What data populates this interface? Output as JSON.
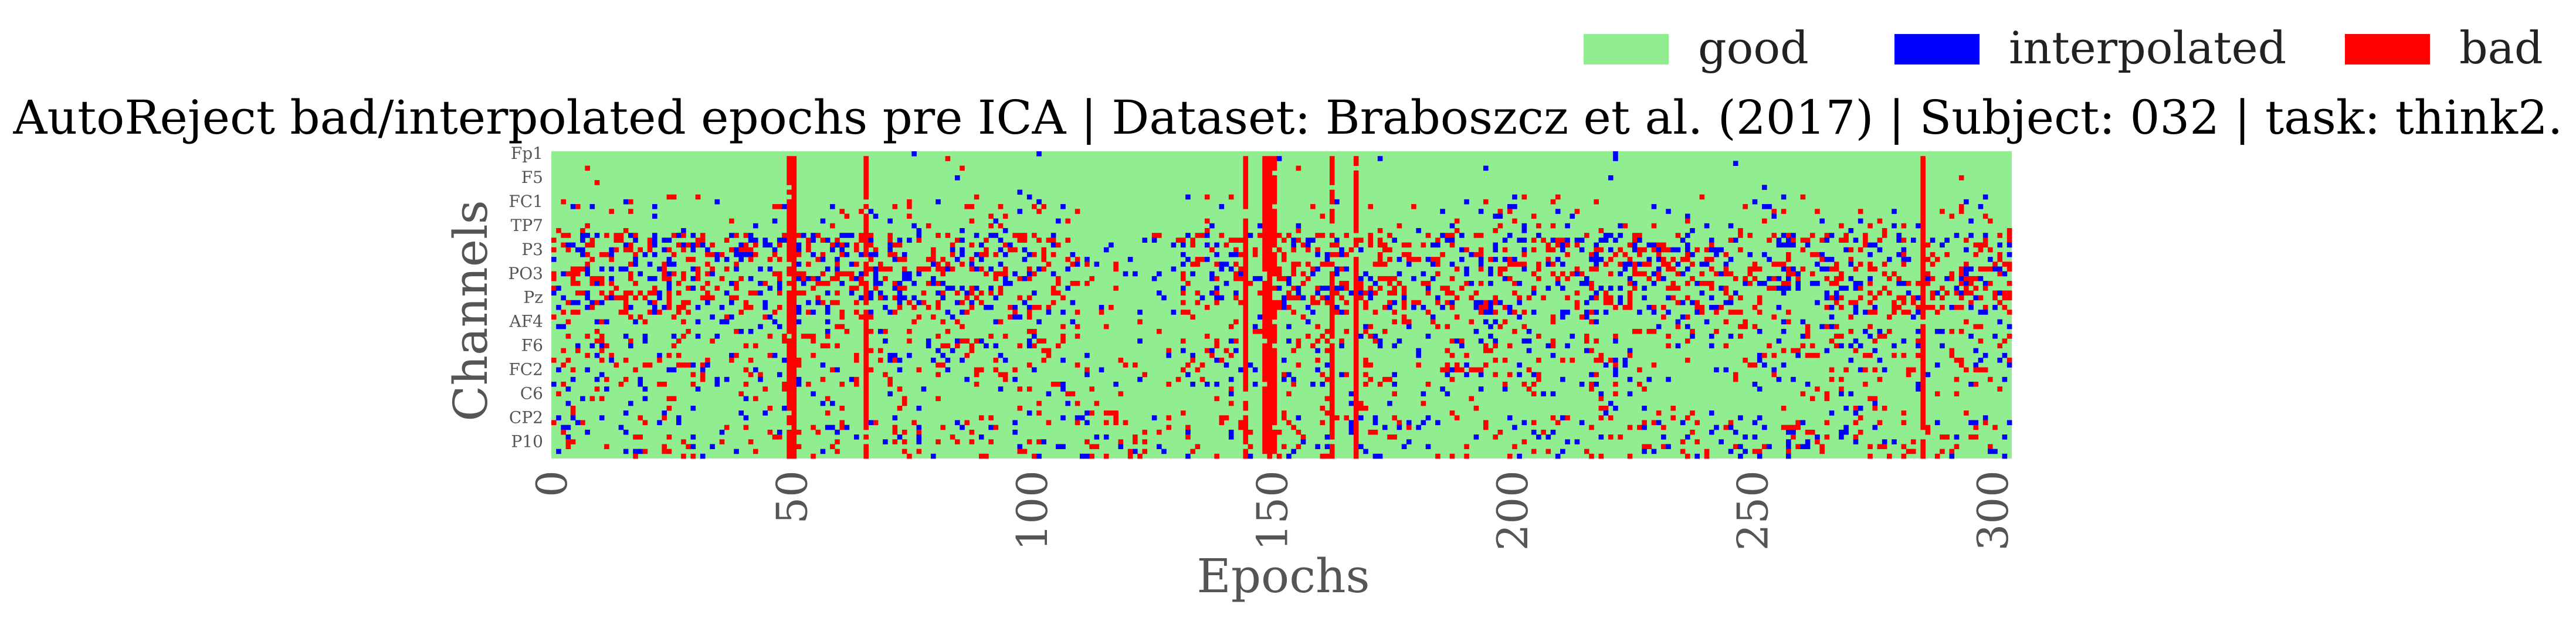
{
  "chart_data": {
    "type": "heatmap",
    "title": "AutoReject bad/interpolated epochs pre ICA | Dataset: Braboszcz et al. (2017) | Subject: 032 | task: think2.",
    "xlabel": "Epochs",
    "ylabel": "Channels",
    "x_range": [
      0,
      304
    ],
    "y_range": [
      0,
      64
    ],
    "x_ticks": [
      "0",
      "50",
      "100",
      "150",
      "200",
      "250",
      "300"
    ],
    "y_ticks": [
      "Fp1",
      "F5",
      "FC1",
      "TP7",
      "P3",
      "PO3",
      "Pz",
      "AF4",
      "F6",
      "FC2",
      "C6",
      "CP2",
      "P10"
    ],
    "legend": [
      {
        "label": "good",
        "color": "#90ee90"
      },
      {
        "label": "interpolated",
        "color": "#0000ff"
      },
      {
        "label": "bad",
        "color": "#ff0000"
      }
    ],
    "legend_position": "top-right",
    "bad_epochs": [
      49,
      50,
      65,
      144,
      148,
      149,
      150,
      162,
      167,
      285
    ],
    "encoding": {
      "good": 0,
      "interpolated": 1,
      "bad": 2
    }
  }
}
